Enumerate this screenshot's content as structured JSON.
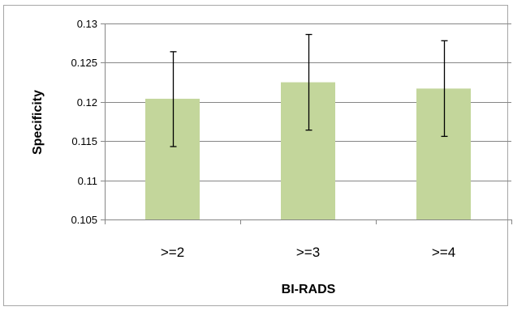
{
  "chart_data": {
    "type": "bar",
    "title": "",
    "xlabel": "BI-RADS",
    "ylabel": "Specificity",
    "categories": [
      ">=2",
      ">=3",
      ">=4"
    ],
    "values": [
      0.1204,
      0.1225,
      0.1217
    ],
    "error_bars": [
      {
        "low": 0.1143,
        "high": 0.1264
      },
      {
        "low": 0.1164,
        "high": 0.1286
      },
      {
        "low": 0.1156,
        "high": 0.1278
      }
    ],
    "ylim": [
      0.105,
      0.13
    ],
    "yticks": [
      0.105,
      0.11,
      0.115,
      0.12,
      0.125,
      0.13
    ],
    "ytick_labels": [
      "0.105",
      "0.11",
      "0.115",
      "0.12",
      "0.125",
      "0.13"
    ],
    "grid": true,
    "legend": "none",
    "colors": {
      "bar": "#c3d69b",
      "grid": "#868686",
      "error_bar": "#000000",
      "frame": "#a6a6a6"
    }
  }
}
